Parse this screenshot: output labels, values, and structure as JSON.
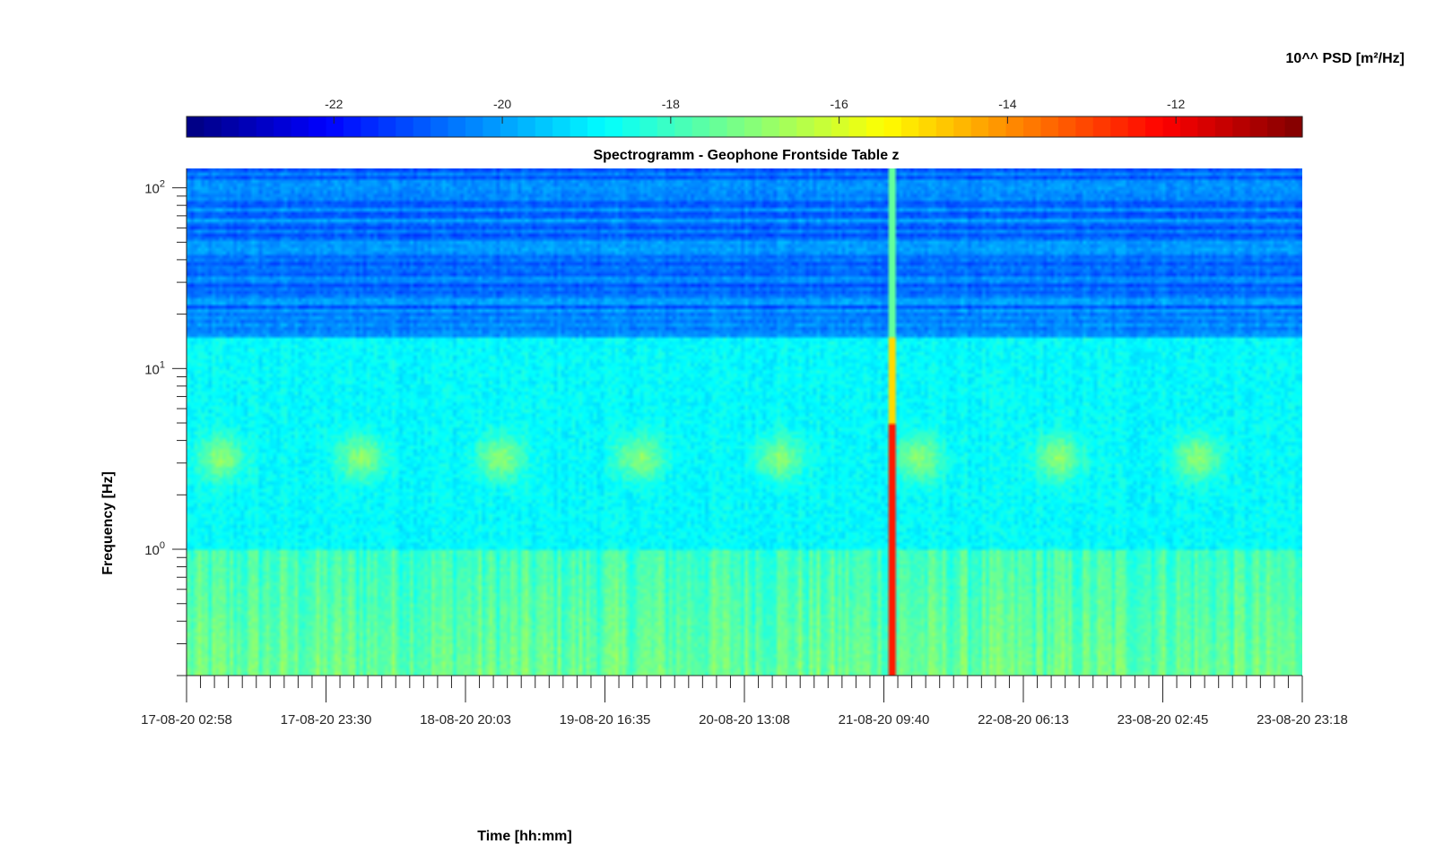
{
  "chart_data": {
    "type": "heatmap",
    "title": "Spectrogramm - Geophone Frontside Table z",
    "xlabel": "Time [hh:mm]",
    "ylabel": "Frequency [Hz]",
    "colorbar_label": "10^^ PSD [m²/Hz]",
    "colorbar_position": "top",
    "colormap": "jet",
    "x_tick_labels": [
      "17-08-20 02:58",
      "17-08-20 23:30",
      "18-08-20 20:03",
      "19-08-20 16:35",
      "20-08-20 13:08",
      "21-08-20 09:40",
      "22-08-20 06:13",
      "23-08-20 02:45",
      "23-08-20 23:18"
    ],
    "y_scale": "log",
    "y_ticks": [
      1,
      10,
      100
    ],
    "y_tick_exponents": [
      "0",
      "1",
      "2"
    ],
    "y_tick_base": "10",
    "ylim": [
      0.2,
      128
    ],
    "clim": [
      -23.75,
      -10.5
    ],
    "colorbar_ticks": [
      -22,
      -20,
      -18,
      -16,
      -14,
      -12
    ],
    "colorbar_tick_labels": [
      "-22",
      "-20",
      "-18",
      "-16",
      "-14",
      "-12"
    ],
    "observations": {
      "high_frequency_band_above_15Hz": -20.5,
      "mid_band_1_to_15Hz": -18.8,
      "low_band_below_1Hz": -18.0,
      "diurnal_peak_3Hz_level": -17.0,
      "event_time_label": "21-08-20 09:40",
      "event_peak_level": -12.5
    }
  },
  "colors": {
    "background": "#ffffff",
    "axis": "#262626"
  }
}
